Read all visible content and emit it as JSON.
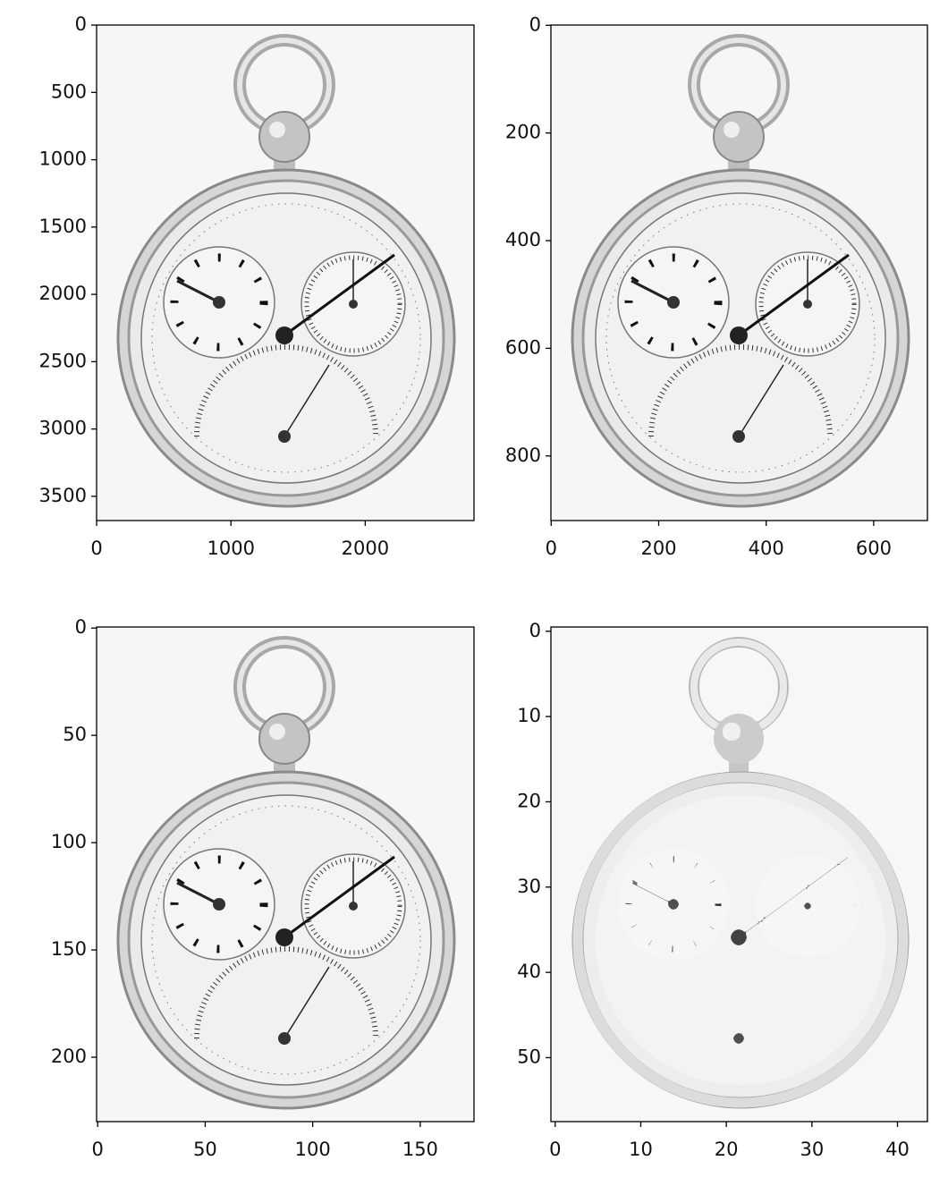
{
  "chart_data": [
    {
      "type": "image",
      "xlim": [
        -0.5,
        2810
      ],
      "ylim": [
        3680,
        -0.5
      ],
      "xticks": [
        0,
        1000,
        2000
      ],
      "yticks": [
        0,
        500,
        1000,
        1500,
        2000,
        2500,
        3000,
        3500
      ]
    },
    {
      "type": "image",
      "xlim": [
        -0.5,
        700
      ],
      "ylim": [
        920,
        -0.5
      ],
      "xticks": [
        0,
        200,
        400,
        600
      ],
      "yticks": [
        0,
        200,
        400,
        600,
        800
      ]
    },
    {
      "type": "image",
      "xlim": [
        -0.5,
        175
      ],
      "ylim": [
        230,
        -0.5
      ],
      "xticks": [
        0,
        50,
        100,
        150
      ],
      "yticks": [
        0,
        50,
        100,
        150,
        200
      ]
    },
    {
      "type": "image",
      "xlim": [
        -0.5,
        43.5
      ],
      "ylim": [
        57.5,
        -0.5
      ],
      "xticks": [
        0,
        10,
        20,
        30,
        40
      ],
      "yticks": [
        0,
        10,
        20,
        30,
        40,
        50
      ]
    }
  ]
}
